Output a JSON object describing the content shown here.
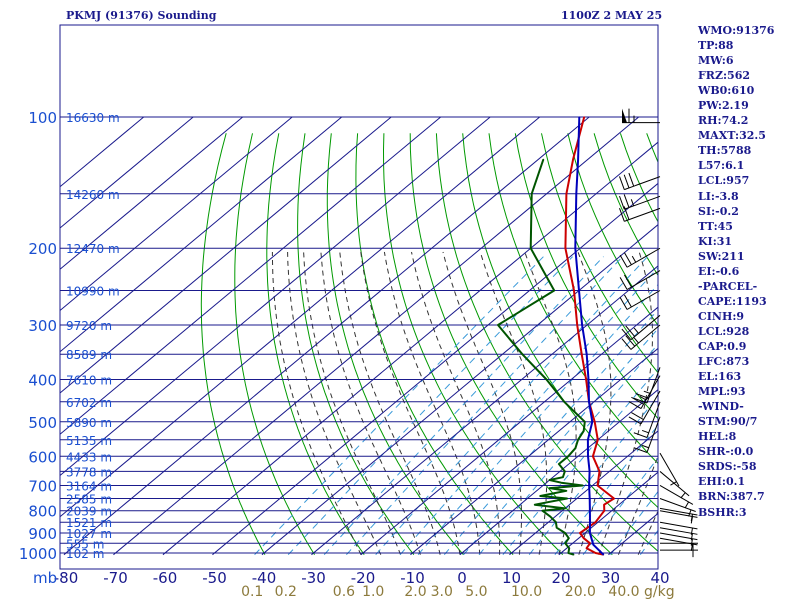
{
  "header": {
    "title": "PKMJ (91376) Sounding",
    "timestamp": "1100Z  2 MAY 25"
  },
  "indices": [
    "WMO:91376",
    "TP:88",
    "MW:6",
    "FRZ:562",
    "WB0:610",
    "PW:2.19",
    "RH:74.2",
    "MAXT:32.5",
    "TH:5788",
    "L57:6.1",
    "LCL:957",
    "LI:-3.8",
    "SI:-0.2",
    "TT:45",
    "KI:31",
    "SW:211",
    "EI:-0.6",
    "-PARCEL-",
    "CAPE:1193",
    "CINH:9",
    "LCL:928",
    "CAP:0.9",
    "LFC:873",
    "EL:163",
    "MPL:93",
    "-WIND-",
    "STM:90/7",
    "HEL:8",
    "SHR-:0.0",
    "SRDS:-58",
    "EHI:0.1",
    "BRN:387.7",
    "BSHR:3"
  ],
  "colors": {
    "frame": "#1a1a8c",
    "isobar": "#1a1a8c",
    "isotherm": "#1a1a8c",
    "dry_adiabat": "#009900",
    "moist_adiabat": "#333333",
    "mixing_ratio": "#3a9ad9",
    "temperature": "#cc0000",
    "dewpoint": "#005500",
    "parcel": "#0000bb",
    "wind": "#000000"
  },
  "chart_data": {
    "type": "line",
    "title": "PKMJ (91376) Sounding",
    "pressure_unit_label": "mb",
    "mixing_ratio_unit_label": "g/kg",
    "pressure_levels": [
      100,
      200,
      300,
      400,
      500,
      600,
      700,
      800,
      900,
      1000
    ],
    "height_labels": [
      {
        "p": 100,
        "label": "16630 m"
      },
      {
        "p": 150,
        "label": "14260 m"
      },
      {
        "p": 200,
        "label": "12470 m"
      },
      {
        "p": 250,
        "label": "10990 m"
      },
      {
        "p": 300,
        "label": "9720 m"
      },
      {
        "p": 350,
        "label": "8589 m"
      },
      {
        "p": 400,
        "label": "7610 m"
      },
      {
        "p": 450,
        "label": "6702 m"
      },
      {
        "p": 500,
        "label": "5890 m"
      },
      {
        "p": 550,
        "label": "5135 m"
      },
      {
        "p": 600,
        "label": "4433 m"
      },
      {
        "p": 650,
        "label": "3778 m"
      },
      {
        "p": 700,
        "label": "3164 m"
      },
      {
        "p": 750,
        "label": "2585 m"
      },
      {
        "p": 800,
        "label": "2039 m"
      },
      {
        "p": 850,
        "label": "1521 m"
      },
      {
        "p": 900,
        "label": "1027 m"
      },
      {
        "p": 950,
        "label": "555 m"
      },
      {
        "p": 1000,
        "label": "102 m"
      }
    ],
    "temperature_ticks": [
      -80,
      -70,
      -60,
      -50,
      -40,
      -30,
      -20,
      -10,
      0,
      10,
      20,
      30,
      40
    ],
    "mixing_ratio_labels": [
      "0.1",
      "0.2",
      "0.6",
      "1.0",
      "2.0",
      "3.0",
      "5.0",
      "10.0",
      "20.0",
      "40.0"
    ],
    "xlim": [
      -80,
      40
    ],
    "ylim": [
      1009,
      100
    ],
    "series": [
      {
        "key": "temperature",
        "points": [
          [
            1009,
            29.0
          ],
          [
            1000,
            27.0
          ],
          [
            975,
            24.0
          ],
          [
            950,
            23.5
          ],
          [
            925,
            21.0
          ],
          [
            900,
            19.0
          ],
          [
            850,
            19.5
          ],
          [
            800,
            18.5
          ],
          [
            775,
            17.0
          ],
          [
            750,
            17.5
          ],
          [
            700,
            11.0
          ],
          [
            650,
            8.0
          ],
          [
            600,
            3.0
          ],
          [
            550,
            0.0
          ],
          [
            500,
            -5.0
          ],
          [
            450,
            -11.0
          ],
          [
            400,
            -17.0
          ],
          [
            350,
            -24.0
          ],
          [
            300,
            -32.0
          ],
          [
            250,
            -41.0
          ],
          [
            200,
            -53.0
          ],
          [
            150,
            -66.0
          ],
          [
            125,
            -73.0
          ],
          [
            100,
            -81.0
          ]
        ]
      },
      {
        "key": "dewpoint",
        "points": [
          [
            1009,
            23.0
          ],
          [
            1000,
            21.5
          ],
          [
            975,
            20.5
          ],
          [
            950,
            18.5
          ],
          [
            925,
            18.0
          ],
          [
            900,
            16.0
          ],
          [
            875,
            13.0
          ],
          [
            850,
            11.5
          ],
          [
            825,
            9.0
          ],
          [
            800,
            6.0
          ],
          [
            790,
            10.0
          ],
          [
            775,
            3.0
          ],
          [
            750,
            8.0
          ],
          [
            740,
            2.0
          ],
          [
            730,
            4.0
          ],
          [
            720,
            6.0
          ],
          [
            710,
            2.0
          ],
          [
            700,
            8.0
          ],
          [
            690,
            3.0
          ],
          [
            680,
            0.0
          ],
          [
            670,
            2.0
          ],
          [
            650,
            1.0
          ],
          [
            625,
            -2.0
          ],
          [
            600,
            -2.0
          ],
          [
            575,
            -2.5
          ],
          [
            550,
            -4.0
          ],
          [
            525,
            -5.0
          ],
          [
            500,
            -7.0
          ],
          [
            450,
            -16.0
          ],
          [
            400,
            -25.0
          ],
          [
            350,
            -36.0
          ],
          [
            300,
            -48.0
          ],
          [
            250,
            -45.0
          ],
          [
            200,
            -60.0
          ],
          [
            150,
            -73.0
          ],
          [
            125,
            -79.0
          ]
        ]
      },
      {
        "key": "parcel",
        "points": [
          [
            1009,
            29.0
          ],
          [
            957,
            24.5
          ],
          [
            900,
            21.0
          ],
          [
            850,
            18.4
          ],
          [
            800,
            15.6
          ],
          [
            750,
            12.6
          ],
          [
            700,
            9.3
          ],
          [
            650,
            6.0
          ],
          [
            600,
            2.0
          ],
          [
            550,
            -2.0
          ],
          [
            500,
            -5.5
          ],
          [
            450,
            -11.0
          ],
          [
            400,
            -16.5
          ],
          [
            350,
            -23.0
          ],
          [
            300,
            -31.0
          ],
          [
            250,
            -40.0
          ],
          [
            200,
            -51.0
          ],
          [
            150,
            -64.0
          ],
          [
            125,
            -72.0
          ],
          [
            100,
            -82.0
          ]
        ]
      }
    ],
    "wind_barbs": [
      {
        "p": 103,
        "dir": 270,
        "spd": 65
      },
      {
        "p": 137,
        "dir": 250,
        "spd": 30
      },
      {
        "p": 152,
        "dir": 250,
        "spd": 25
      },
      {
        "p": 162,
        "dir": 250,
        "spd": 20
      },
      {
        "p": 200,
        "dir": 240,
        "spd": 25
      },
      {
        "p": 225,
        "dir": 240,
        "spd": 20
      },
      {
        "p": 250,
        "dir": 240,
        "spd": 20
      },
      {
        "p": 285,
        "dir": 230,
        "spd": 25
      },
      {
        "p": 300,
        "dir": 230,
        "spd": 25
      },
      {
        "p": 375,
        "dir": 200,
        "spd": 25
      },
      {
        "p": 392,
        "dir": 210,
        "spd": 25
      },
      {
        "p": 425,
        "dir": 210,
        "spd": 20
      },
      {
        "p": 450,
        "dir": 200,
        "spd": 15
      },
      {
        "p": 487,
        "dir": 200,
        "spd": 15
      },
      {
        "p": 590,
        "dir": 150,
        "spd": 5
      },
      {
        "p": 650,
        "dir": 130,
        "spd": 5
      },
      {
        "p": 700,
        "dir": 120,
        "spd": 5
      },
      {
        "p": 750,
        "dir": 110,
        "spd": 5
      },
      {
        "p": 790,
        "dir": 100,
        "spd": 5
      },
      {
        "p": 800,
        "dir": 100,
        "spd": 5
      },
      {
        "p": 850,
        "dir": 100,
        "spd": 5
      },
      {
        "p": 875,
        "dir": 100,
        "spd": 5
      },
      {
        "p": 900,
        "dir": 100,
        "spd": 5
      },
      {
        "p": 925,
        "dir": 100,
        "spd": 5
      },
      {
        "p": 950,
        "dir": 90,
        "spd": 5
      },
      {
        "p": 985,
        "dir": 90,
        "spd": 5
      }
    ]
  }
}
